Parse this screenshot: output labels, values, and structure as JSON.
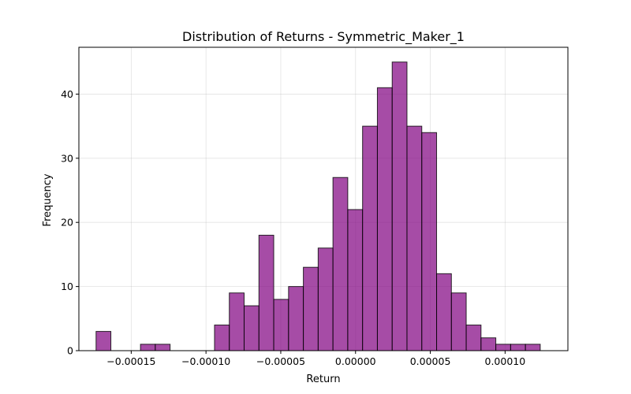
{
  "chart_data": {
    "type": "bar",
    "title": "Distribution of Returns - Symmetric_Maker_1",
    "xlabel": "Return",
    "ylabel": "Frequency",
    "xlim": [
      -0.000185,
      0.000142
    ],
    "ylim": [
      0,
      47.3
    ],
    "grid": true,
    "bar_color": "#800080",
    "bar_edge_color": "#000000",
    "bin_width": 9.9e-06,
    "bins": [
      {
        "x0": -0.0001735,
        "count": 3
      },
      {
        "x0": -0.0001438,
        "count": 1
      },
      {
        "x0": -0.0001339,
        "count": 1
      },
      {
        "x0": -9.43e-05,
        "count": 4
      },
      {
        "x0": -8.44e-05,
        "count": 9
      },
      {
        "x0": -7.45e-05,
        "count": 7
      },
      {
        "x0": -6.46e-05,
        "count": 18
      },
      {
        "x0": -5.47e-05,
        "count": 8
      },
      {
        "x0": -4.48e-05,
        "count": 10
      },
      {
        "x0": -3.49e-05,
        "count": 13
      },
      {
        "x0": -2.5e-05,
        "count": 16
      },
      {
        "x0": -1.51e-05,
        "count": 27
      },
      {
        "x0": -5.2e-06,
        "count": 22
      },
      {
        "x0": 4.7e-06,
        "count": 35
      },
      {
        "x0": 1.46e-05,
        "count": 41
      },
      {
        "x0": 2.45e-05,
        "count": 45
      },
      {
        "x0": 3.44e-05,
        "count": 35
      },
      {
        "x0": 4.43e-05,
        "count": 34
      },
      {
        "x0": 5.42e-05,
        "count": 12
      },
      {
        "x0": 6.41e-05,
        "count": 9
      },
      {
        "x0": 7.4e-05,
        "count": 4
      },
      {
        "x0": 8.39e-05,
        "count": 2
      },
      {
        "x0": 9.38e-05,
        "count": 1
      },
      {
        "x0": 0.0001037,
        "count": 1
      },
      {
        "x0": 0.0001136,
        "count": 1
      }
    ],
    "x_ticks": [
      {
        "value": -0.00015,
        "label": "−0.00015"
      },
      {
        "value": -0.0001,
        "label": "−0.00010"
      },
      {
        "value": -5e-05,
        "label": "−0.00005"
      },
      {
        "value": 0,
        "label": "0.00000"
      },
      {
        "value": 5e-05,
        "label": "0.00005"
      },
      {
        "value": 0.0001,
        "label": "0.00010"
      }
    ],
    "y_ticks": [
      {
        "value": 0,
        "label": "0"
      },
      {
        "value": 10,
        "label": "10"
      },
      {
        "value": 20,
        "label": "20"
      },
      {
        "value": 30,
        "label": "30"
      },
      {
        "value": 40,
        "label": "40"
      }
    ]
  }
}
